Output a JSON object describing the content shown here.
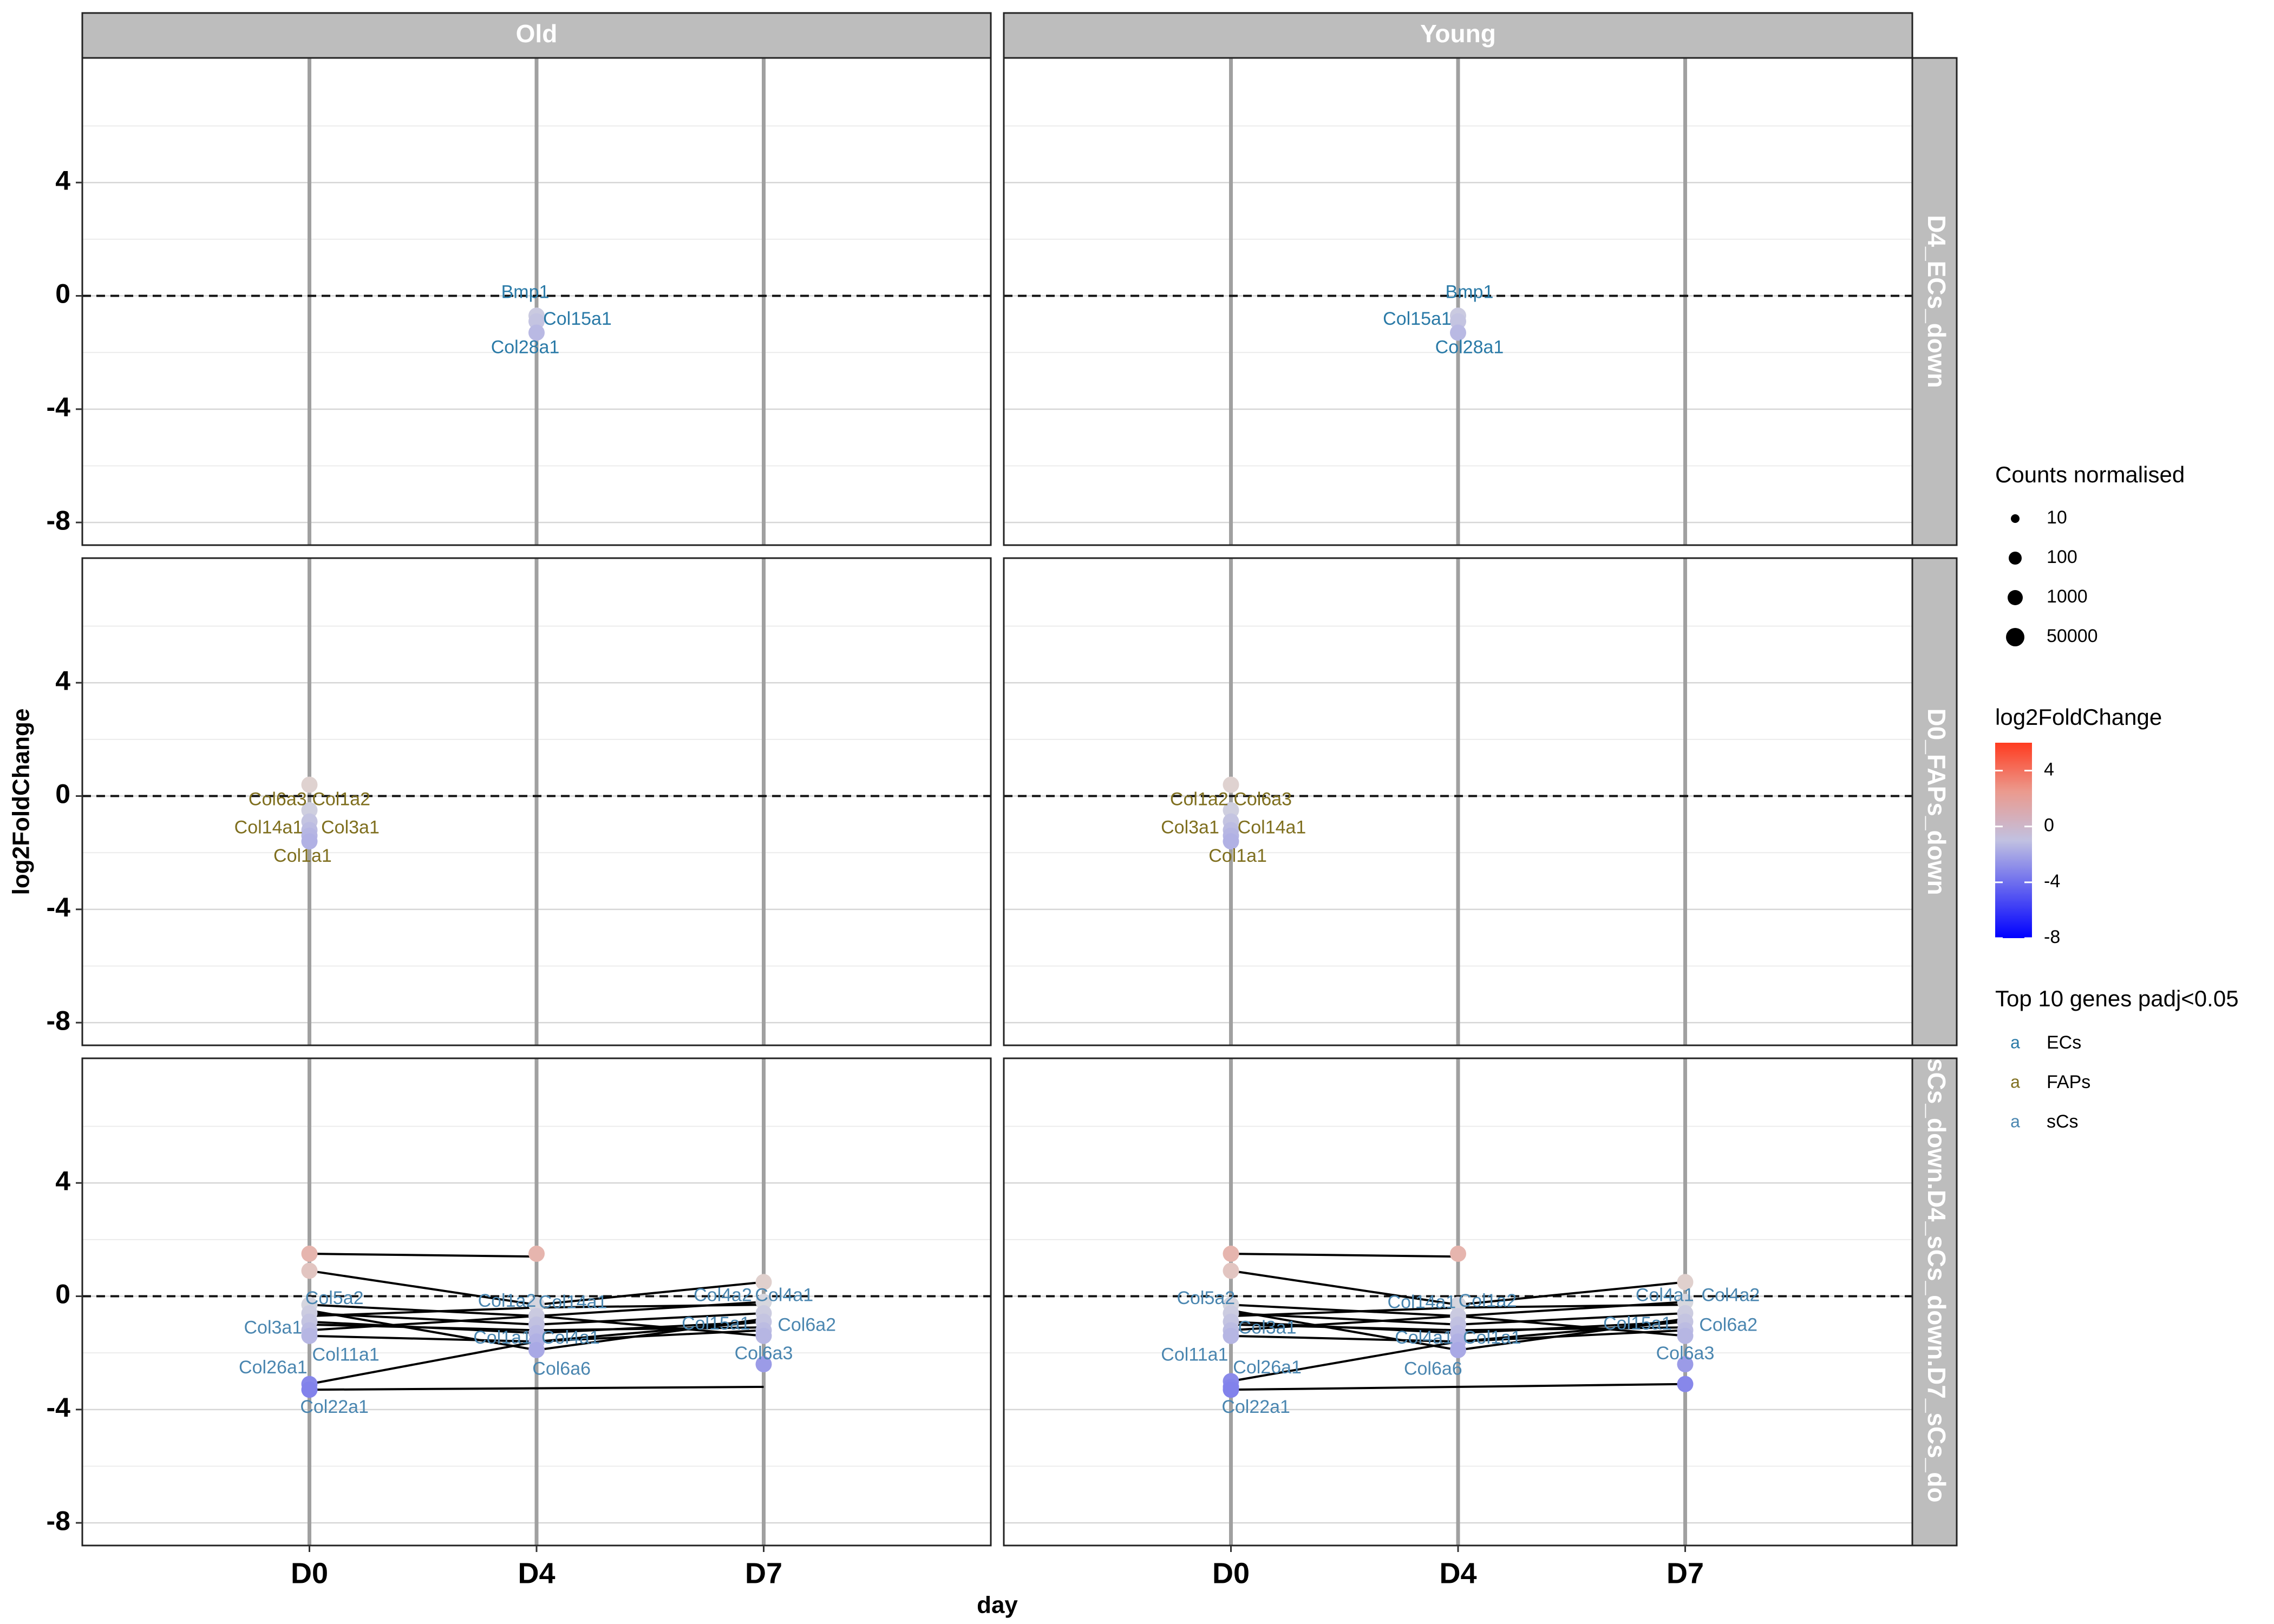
{
  "chart_data": {
    "type": "scatter",
    "xlabel": "day",
    "ylabel": "log2FoldChange",
    "x_categories": [
      "D0",
      "D4",
      "D7"
    ],
    "ylim": [
      -8.8,
      8.4
    ],
    "yticks": [
      "4",
      "0",
      "-4",
      "-8"
    ],
    "ytick_values": [
      4,
      0,
      -4,
      -8
    ],
    "hline": 0,
    "column_facets": [
      "Old",
      "Young"
    ],
    "row_facets": [
      "D4_ECs_down",
      "D0_FAPs_down",
      "sCs_down.D4_sCs_down.D7_sCs_do"
    ],
    "legend": {
      "size_title": "Counts normalised",
      "size_labels": [
        "10",
        "100",
        "1000",
        "50000"
      ],
      "color_title": "log2FoldChange",
      "color_labels": [
        "4",
        "0",
        "-4",
        "-8"
      ],
      "color_values": [
        4,
        0,
        -4,
        -8
      ],
      "color_range": [
        -8,
        6
      ],
      "color_low": "#0000ff",
      "color_mid": "#dddddd",
      "color_high": "#ff3b1f",
      "group_title": "Top 10 genes padj<0.05",
      "group_glyph": "a",
      "groups": [
        {
          "name": "ECs",
          "color": "#2a7aa7"
        },
        {
          "name": "FAPs",
          "color": "#7f6f1f"
        },
        {
          "name": "sCs",
          "color": "#4a86b0"
        }
      ]
    },
    "panels": [
      {
        "col": 0,
        "row": 0,
        "group": "ECs",
        "points": [
          {
            "day": "D4",
            "lfc": -0.7
          },
          {
            "day": "D4",
            "lfc": -0.9
          },
          {
            "day": "D4",
            "lfc": -1.3
          }
        ],
        "labels": [
          {
            "text": "Bmp1",
            "day": "D4",
            "lfc": 0.1,
            "dx": -0.05
          },
          {
            "text": "Col15a1",
            "day": "D4",
            "lfc": -0.85,
            "dx": 0.18
          },
          {
            "text": "Col28a1",
            "day": "D4",
            "lfc": -1.85,
            "dx": -0.05
          }
        ],
        "lines": []
      },
      {
        "col": 1,
        "row": 0,
        "group": "ECs",
        "points": [
          {
            "day": "D4",
            "lfc": -0.7
          },
          {
            "day": "D4",
            "lfc": -0.9
          },
          {
            "day": "D4",
            "lfc": -1.3
          }
        ],
        "labels": [
          {
            "text": "Bmp1",
            "day": "D4",
            "lfc": 0.1,
            "dx": 0.05
          },
          {
            "text": "Col15a1",
            "day": "D4",
            "lfc": -0.85,
            "dx": -0.18
          },
          {
            "text": "Col28a1",
            "day": "D4",
            "lfc": -1.85,
            "dx": 0.05
          }
        ],
        "lines": []
      },
      {
        "col": 0,
        "row": 1,
        "group": "FAPs",
        "points": [
          {
            "day": "D0",
            "lfc": 0.4
          },
          {
            "day": "D0",
            "lfc": -0.5
          },
          {
            "day": "D0",
            "lfc": -0.9
          },
          {
            "day": "D0",
            "lfc": -1.2
          },
          {
            "day": "D0",
            "lfc": -1.4
          },
          {
            "day": "D0",
            "lfc": -1.6
          }
        ],
        "labels": [
          {
            "text": "Col6a3",
            "day": "D0",
            "lfc": -0.15,
            "dx": -0.14
          },
          {
            "text": "Col1a2",
            "day": "D0",
            "lfc": -0.15,
            "dx": 0.14
          },
          {
            "text": "Col14a1",
            "day": "D0",
            "lfc": -1.15,
            "dx": -0.18
          },
          {
            "text": "Col3a1",
            "day": "D0",
            "lfc": -1.15,
            "dx": 0.18
          },
          {
            "text": "Col1a1",
            "day": "D0",
            "lfc": -2.15,
            "dx": -0.03
          }
        ],
        "lines": []
      },
      {
        "col": 1,
        "row": 1,
        "group": "FAPs",
        "points": [
          {
            "day": "D0",
            "lfc": 0.4
          },
          {
            "day": "D0",
            "lfc": -0.5
          },
          {
            "day": "D0",
            "lfc": -0.9
          },
          {
            "day": "D0",
            "lfc": -1.2
          },
          {
            "day": "D0",
            "lfc": -1.4
          },
          {
            "day": "D0",
            "lfc": -1.6
          }
        ],
        "labels": [
          {
            "text": "Col1a2",
            "day": "D0",
            "lfc": -0.15,
            "dx": -0.14
          },
          {
            "text": "Col6a3",
            "day": "D0",
            "lfc": -0.15,
            "dx": 0.14
          },
          {
            "text": "Col3a1",
            "day": "D0",
            "lfc": -1.15,
            "dx": -0.18
          },
          {
            "text": "Col14a1",
            "day": "D0",
            "lfc": -1.15,
            "dx": 0.18
          },
          {
            "text": "Col1a1",
            "day": "D0",
            "lfc": -2.15,
            "dx": 0.03
          }
        ],
        "lines": []
      },
      {
        "col": 0,
        "row": 2,
        "group": "sCs",
        "points": [
          {
            "day": "D0",
            "lfc": 1.5
          },
          {
            "day": "D0",
            "lfc": 0.9
          },
          {
            "day": "D0",
            "lfc": -0.3
          },
          {
            "day": "D0",
            "lfc": -0.6
          },
          {
            "day": "D0",
            "lfc": -0.9
          },
          {
            "day": "D0",
            "lfc": -1.2
          },
          {
            "day": "D0",
            "lfc": -1.4
          },
          {
            "day": "D0",
            "lfc": -3.1
          },
          {
            "day": "D0",
            "lfc": -3.3
          },
          {
            "day": "D4",
            "lfc": 1.5
          },
          {
            "day": "D4",
            "lfc": -0.3
          },
          {
            "day": "D4",
            "lfc": -0.7
          },
          {
            "day": "D4",
            "lfc": -1.0
          },
          {
            "day": "D4",
            "lfc": -1.3
          },
          {
            "day": "D4",
            "lfc": -1.6
          },
          {
            "day": "D4",
            "lfc": -1.9
          },
          {
            "day": "D7",
            "lfc": 0.5
          },
          {
            "day": "D7",
            "lfc": -0.2
          },
          {
            "day": "D7",
            "lfc": -0.6
          },
          {
            "day": "D7",
            "lfc": -0.9
          },
          {
            "day": "D7",
            "lfc": -1.2
          },
          {
            "day": "D7",
            "lfc": -1.4
          },
          {
            "day": "D7",
            "lfc": -2.4
          }
        ],
        "labels": [
          {
            "text": "Col5a2",
            "day": "D0",
            "lfc": -0.1,
            "dx": 0.11
          },
          {
            "text": "Col3a1",
            "day": "D0",
            "lfc": -1.15,
            "dx": -0.16
          },
          {
            "text": "Col11a1",
            "day": "D0",
            "lfc": -2.1,
            "dx": 0.16
          },
          {
            "text": "Col26a1",
            "day": "D0",
            "lfc": -2.55,
            "dx": -0.16
          },
          {
            "text": "Col22a1",
            "day": "D0",
            "lfc": -3.95,
            "dx": 0.11
          },
          {
            "text": "Col1a2",
            "day": "D4",
            "lfc": -0.2,
            "dx": -0.13
          },
          {
            "text": "Col14a1",
            "day": "D4",
            "lfc": -0.25,
            "dx": 0.16
          },
          {
            "text": "Col1a1",
            "day": "D4",
            "lfc": -1.5,
            "dx": -0.15
          },
          {
            "text": "Col4a1",
            "day": "D4",
            "lfc": -1.5,
            "dx": 0.15
          },
          {
            "text": "Col6a6",
            "day": "D4",
            "lfc": -2.6,
            "dx": 0.11
          },
          {
            "text": "Col4a2",
            "day": "D7",
            "lfc": 0.0,
            "dx": -0.18
          },
          {
            "text": "Col4a1",
            "day": "D7",
            "lfc": 0.0,
            "dx": 0.09
          },
          {
            "text": "Col15a1",
            "day": "D7",
            "lfc": -1.0,
            "dx": -0.21
          },
          {
            "text": "Col6a2",
            "day": "D7",
            "lfc": -1.05,
            "dx": 0.19
          },
          {
            "text": "Col6a3",
            "day": "D7",
            "lfc": -2.05,
            "dx": 0.0
          }
        ],
        "lines": [
          [
            1.5,
            1.4,
            null
          ],
          [
            0.9,
            -0.3,
            0.5
          ],
          [
            -0.3,
            -0.7,
            -0.2
          ],
          [
            -0.6,
            -1.0,
            -0.6
          ],
          [
            -0.9,
            -1.3,
            -0.9
          ],
          [
            -1.2,
            -0.7,
            -1.4
          ],
          [
            -1.4,
            -1.6,
            -1.2
          ],
          [
            -0.5,
            -1.9,
            -0.8
          ],
          [
            -3.1,
            -1.6,
            -0.9
          ],
          [
            -3.3,
            null,
            -3.2
          ],
          [
            -0.7,
            -0.4,
            -0.3
          ],
          [
            -1.0,
            -1.2,
            -1.1
          ]
        ]
      },
      {
        "col": 1,
        "row": 2,
        "group": "sCs",
        "points": [
          {
            "day": "D0",
            "lfc": 1.5
          },
          {
            "day": "D0",
            "lfc": 0.9
          },
          {
            "day": "D0",
            "lfc": -0.3
          },
          {
            "day": "D0",
            "lfc": -0.6
          },
          {
            "day": "D0",
            "lfc": -0.9
          },
          {
            "day": "D0",
            "lfc": -1.2
          },
          {
            "day": "D0",
            "lfc": -1.4
          },
          {
            "day": "D0",
            "lfc": -3.0
          },
          {
            "day": "D0",
            "lfc": -3.2
          },
          {
            "day": "D0",
            "lfc": -3.3
          },
          {
            "day": "D4",
            "lfc": 1.5
          },
          {
            "day": "D4",
            "lfc": -0.3
          },
          {
            "day": "D4",
            "lfc": -0.7
          },
          {
            "day": "D4",
            "lfc": -1.0
          },
          {
            "day": "D4",
            "lfc": -1.3
          },
          {
            "day": "D4",
            "lfc": -1.6
          },
          {
            "day": "D4",
            "lfc": -1.9
          },
          {
            "day": "D7",
            "lfc": 0.5
          },
          {
            "day": "D7",
            "lfc": -0.2
          },
          {
            "day": "D7",
            "lfc": -0.6
          },
          {
            "day": "D7",
            "lfc": -0.9
          },
          {
            "day": "D7",
            "lfc": -1.2
          },
          {
            "day": "D7",
            "lfc": -1.4
          },
          {
            "day": "D7",
            "lfc": -2.4
          },
          {
            "day": "D7",
            "lfc": -3.1
          }
        ],
        "labels": [
          {
            "text": "Col5a2",
            "day": "D0",
            "lfc": -0.1,
            "dx": -0.11
          },
          {
            "text": "Col3a1",
            "day": "D0",
            "lfc": -1.15,
            "dx": 0.16
          },
          {
            "text": "Col11a1",
            "day": "D0",
            "lfc": -2.1,
            "dx": -0.16
          },
          {
            "text": "Col26a1",
            "day": "D0",
            "lfc": -2.55,
            "dx": 0.16
          },
          {
            "text": "Col22a1",
            "day": "D0",
            "lfc": -3.95,
            "dx": 0.11
          },
          {
            "text": "Col14a1",
            "day": "D4",
            "lfc": -0.25,
            "dx": -0.16
          },
          {
            "text": "Col1a2",
            "day": "D4",
            "lfc": -0.2,
            "dx": 0.13
          },
          {
            "text": "Col4a1",
            "day": "D4",
            "lfc": -1.5,
            "dx": -0.15
          },
          {
            "text": "Col1a1",
            "day": "D4",
            "lfc": -1.5,
            "dx": 0.15
          },
          {
            "text": "Col6a6",
            "day": "D4",
            "lfc": -2.6,
            "dx": -0.11
          },
          {
            "text": "Col4a1",
            "day": "D7",
            "lfc": 0.0,
            "dx": -0.09
          },
          {
            "text": "Col4a2",
            "day": "D7",
            "lfc": 0.0,
            "dx": 0.2
          },
          {
            "text": "Col15a1",
            "day": "D7",
            "lfc": -1.0,
            "dx": -0.21
          },
          {
            "text": "Col6a2",
            "day": "D7",
            "lfc": -1.05,
            "dx": 0.19
          },
          {
            "text": "Col6a3",
            "day": "D7",
            "lfc": -2.05,
            "dx": 0.0
          }
        ],
        "lines": [
          [
            1.5,
            1.4,
            null
          ],
          [
            0.9,
            -0.3,
            0.5
          ],
          [
            -0.3,
            -0.7,
            -0.2
          ],
          [
            -0.6,
            -1.0,
            -0.6
          ],
          [
            -0.9,
            -1.3,
            -0.9
          ],
          [
            -1.2,
            -0.7,
            -1.4
          ],
          [
            -1.4,
            -1.6,
            -1.2
          ],
          [
            -0.5,
            -1.9,
            -0.8
          ],
          [
            -3.0,
            -1.6,
            -0.9
          ],
          [
            -3.3,
            null,
            -3.1
          ],
          [
            -0.7,
            -0.4,
            -0.3
          ],
          [
            -1.0,
            -1.2,
            -1.1
          ]
        ]
      }
    ]
  }
}
